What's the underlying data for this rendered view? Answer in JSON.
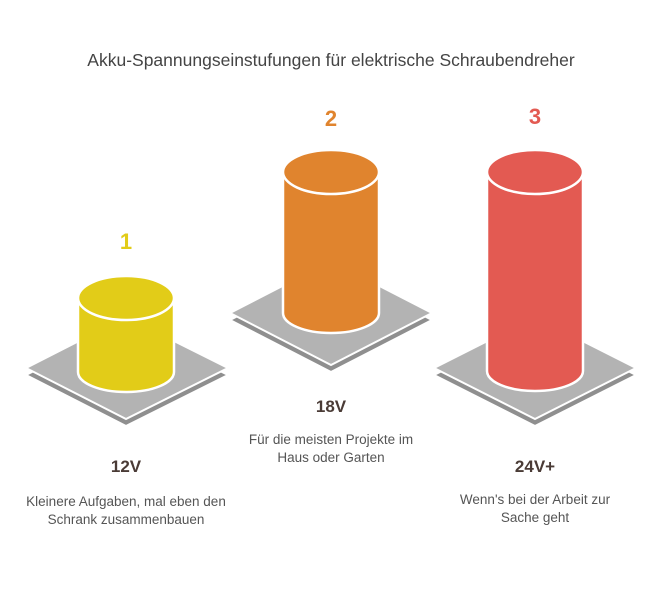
{
  "title": "Akku-Spannungseinstufungen für elektrische Schraubendreher",
  "items": [
    {
      "number": "1",
      "voltage": "12V",
      "description": "Kleinere Aufgaben, mal eben den Schrank zusammenbauen",
      "color": "#e2cc18",
      "top_color": "#e2cc18"
    },
    {
      "number": "2",
      "voltage": "18V",
      "description": "Für die meisten Projekte im Haus oder Garten",
      "color": "#e0842e",
      "top_color": "#e0842e"
    },
    {
      "number": "3",
      "voltage": "24V+",
      "description": "Wenn's bei der Arbeit zur Sache geht",
      "color": "#e35a52",
      "top_color": "#e35a52"
    }
  ],
  "colors": {
    "platform_top": "#b3b3b3",
    "platform_side": "#8f8f8f",
    "outline": "#ffffff"
  }
}
